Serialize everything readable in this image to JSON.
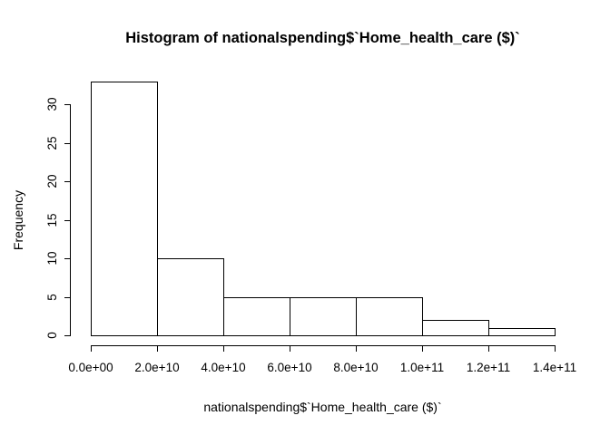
{
  "figure": {
    "background": "#ffffff",
    "stroke_color": "#000000"
  },
  "chart_data": {
    "type": "bar",
    "subtype": "histogram",
    "title": "Histogram of nationalspending$`Home_health_care ($)`",
    "xlabel": "nationalspending$`Home_health_care ($)`",
    "ylabel": "Frequency",
    "bin_breaks": [
      0,
      20000000000,
      40000000000,
      60000000000,
      80000000000,
      100000000000,
      120000000000,
      140000000000
    ],
    "frequencies": [
      33,
      10,
      5,
      5,
      5,
      2,
      1
    ],
    "x_tick_values": [
      0,
      20000000000,
      40000000000,
      60000000000,
      80000000000,
      100000000000,
      120000000000,
      140000000000
    ],
    "x_tick_labels": [
      "0.0e+00",
      "2.0e+10",
      "4.0e+10",
      "6.0e+10",
      "8.0e+10",
      "1.0e+11",
      "1.2e+11",
      "1.4e+11"
    ],
    "y_tick_values": [
      0,
      5,
      10,
      15,
      20,
      25,
      30
    ],
    "y_tick_labels": [
      "0",
      "5",
      "10",
      "15",
      "20",
      "25",
      "30"
    ],
    "xlim": [
      0,
      140000000000
    ],
    "ylim": [
      0,
      33
    ],
    "grid": false,
    "legend_position": "none",
    "bar_fill": "#ffffff",
    "bar_border": "#000000"
  }
}
